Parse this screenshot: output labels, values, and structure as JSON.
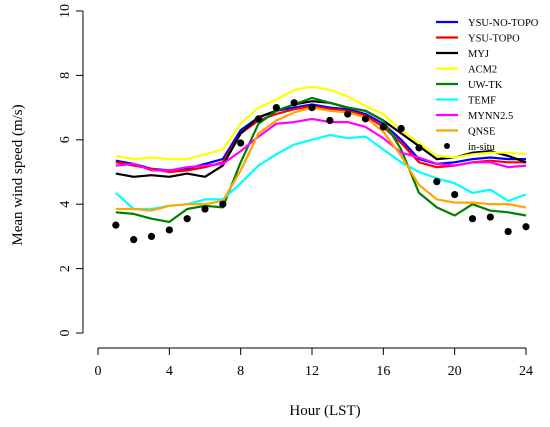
{
  "chart_data": {
    "type": "line",
    "xlabel": "Hour (LST)",
    "ylabel": "Mean wind speed (m/s)",
    "xlim": [
      0,
      24
    ],
    "ylim": [
      0,
      10
    ],
    "x_ticks": [
      0,
      4,
      8,
      12,
      16,
      20,
      24
    ],
    "y_ticks": [
      0,
      2,
      4,
      6,
      8,
      10
    ],
    "grid": false,
    "legend_position": "top-right",
    "x": [
      1,
      2,
      3,
      4,
      5,
      6,
      7,
      8,
      9,
      10,
      11,
      12,
      13,
      14,
      15,
      16,
      17,
      18,
      19,
      20,
      21,
      22,
      23,
      24
    ],
    "series": [
      {
        "name": "YSU-NO-TOPO",
        "color": "#0000ff",
        "style": "line",
        "values": [
          5.35,
          5.25,
          5.1,
          5.05,
          5.1,
          5.25,
          5.4,
          6.3,
          6.7,
          6.9,
          7.0,
          7.1,
          7.0,
          6.95,
          6.8,
          6.5,
          6.0,
          5.4,
          5.25,
          5.3,
          5.4,
          5.45,
          5.4,
          5.4
        ]
      },
      {
        "name": "YSU-TOPO",
        "color": "#ff0000",
        "style": "line",
        "values": [
          5.3,
          5.2,
          5.1,
          5.0,
          5.05,
          5.15,
          5.3,
          6.2,
          6.6,
          6.8,
          6.95,
          7.05,
          6.95,
          6.9,
          6.75,
          6.4,
          5.9,
          5.3,
          5.15,
          5.2,
          5.3,
          5.35,
          5.3,
          5.3
        ]
      },
      {
        "name": "MYJ",
        "color": "#000000",
        "style": "line",
        "values": [
          4.95,
          4.85,
          4.9,
          4.85,
          4.95,
          4.85,
          5.2,
          6.2,
          6.7,
          6.9,
          7.1,
          7.2,
          7.15,
          7.0,
          6.9,
          6.6,
          6.2,
          5.8,
          5.4,
          5.45,
          5.6,
          5.65,
          5.5,
          5.3
        ]
      },
      {
        "name": "ACM2",
        "color": "#ffff00",
        "style": "line",
        "values": [
          5.5,
          5.4,
          5.45,
          5.4,
          5.4,
          5.55,
          5.7,
          6.5,
          7.0,
          7.25,
          7.55,
          7.65,
          7.55,
          7.35,
          7.05,
          6.8,
          6.3,
          5.9,
          5.5,
          5.45,
          5.55,
          5.6,
          5.6,
          5.55
        ]
      },
      {
        "name": "UW-TK",
        "color": "#008000",
        "style": "line",
        "values": [
          3.75,
          3.7,
          3.55,
          3.45,
          3.85,
          3.95,
          3.9,
          5.3,
          6.5,
          6.9,
          7.1,
          7.3,
          7.15,
          7.0,
          6.9,
          6.6,
          5.7,
          4.35,
          3.9,
          3.65,
          4.0,
          3.8,
          3.75,
          3.65
        ]
      },
      {
        "name": "TEMF",
        "color": "#00ffff",
        "style": "line",
        "values": [
          4.35,
          3.85,
          3.85,
          3.95,
          4.0,
          4.15,
          4.15,
          4.65,
          5.2,
          5.55,
          5.85,
          6.0,
          6.15,
          6.05,
          6.1,
          5.7,
          5.3,
          5.0,
          4.8,
          4.65,
          4.35,
          4.45,
          4.1,
          4.3
        ]
      },
      {
        "name": "MYNN2.5",
        "color": "#ff00ff",
        "style": "line",
        "values": [
          5.2,
          5.25,
          5.05,
          5.05,
          5.15,
          5.2,
          5.25,
          5.65,
          6.1,
          6.5,
          6.55,
          6.65,
          6.55,
          6.55,
          6.4,
          6.05,
          5.6,
          5.45,
          5.25,
          5.2,
          5.3,
          5.3,
          5.15,
          5.2
        ]
      },
      {
        "name": "QNSE",
        "color": "#ffa500",
        "style": "line",
        "values": [
          3.85,
          3.85,
          3.8,
          3.95,
          4.0,
          4.0,
          4.1,
          5.05,
          6.2,
          6.6,
          6.85,
          7.0,
          6.9,
          6.85,
          6.7,
          6.25,
          5.5,
          4.6,
          4.15,
          4.05,
          4.05,
          4.0,
          4.0,
          3.9
        ]
      },
      {
        "name": "in-situ",
        "color": "#000000",
        "style": "points",
        "values": [
          3.35,
          2.9,
          3.0,
          3.2,
          3.55,
          3.85,
          4.0,
          5.9,
          6.65,
          7.0,
          7.15,
          7.0,
          6.6,
          6.8,
          6.65,
          6.4,
          6.35,
          5.75,
          4.7,
          4.3,
          3.55,
          3.6,
          3.15,
          3.3
        ]
      }
    ]
  }
}
